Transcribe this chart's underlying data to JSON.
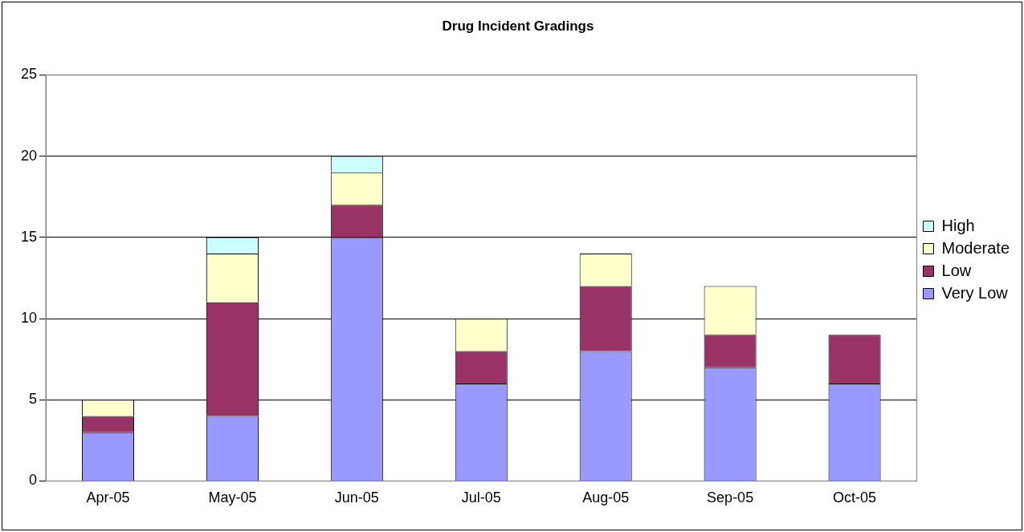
{
  "chart_data": {
    "type": "bar",
    "title": "Drug Incident Gradings",
    "categories": [
      "Apr-05",
      "May-05",
      "Jun-05",
      "Jul-05",
      "Aug-05",
      "Sep-05",
      "Oct-05"
    ],
    "stacked": true,
    "ylim": [
      0,
      25
    ],
    "yticks": [
      0,
      5,
      10,
      15,
      20,
      25
    ],
    "grid": "y",
    "legend": "right",
    "series": [
      {
        "name": "Very Low",
        "color": "#9999ff",
        "values": [
          3,
          4,
          15,
          6,
          8,
          7,
          6
        ]
      },
      {
        "name": "Low",
        "color": "#993366",
        "values": [
          1,
          7,
          2,
          2,
          4,
          2,
          3
        ]
      },
      {
        "name": "Moderate",
        "color": "#ffffcc",
        "values": [
          1,
          3,
          2,
          2,
          2,
          3,
          0
        ]
      },
      {
        "name": "High",
        "color": "#ccffff",
        "values": [
          0,
          1,
          1,
          0,
          0,
          0,
          0
        ]
      }
    ]
  }
}
